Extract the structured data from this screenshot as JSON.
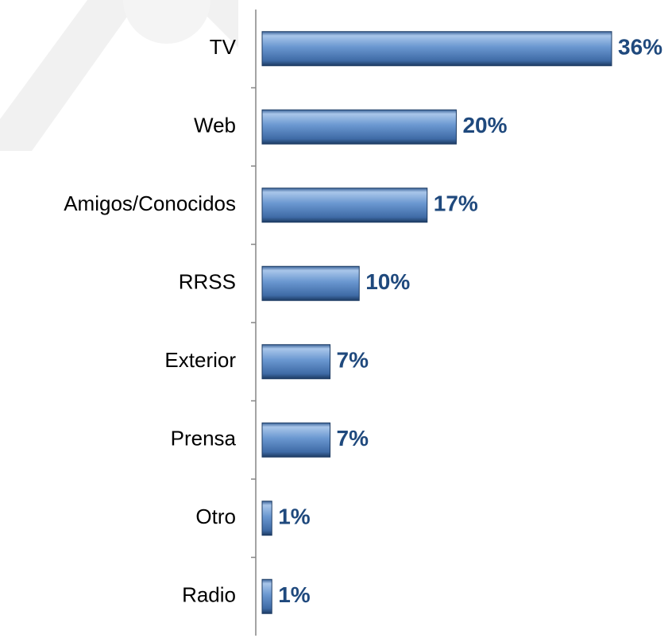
{
  "chart_data": {
    "type": "bar",
    "orientation": "horizontal",
    "categories": [
      "TV",
      "Web",
      "Amigos/Conocidos",
      "RRSS",
      "Exterior",
      "Prensa",
      "Otro",
      "Radio"
    ],
    "values": [
      36,
      20,
      17,
      10,
      7,
      7,
      1,
      1
    ],
    "value_labels": [
      "36%",
      "20%",
      "17%",
      "10%",
      "7%",
      "7%",
      "1%",
      "1%"
    ],
    "color": "#4f81bd",
    "label_color": "#1f497d",
    "grid": false
  }
}
